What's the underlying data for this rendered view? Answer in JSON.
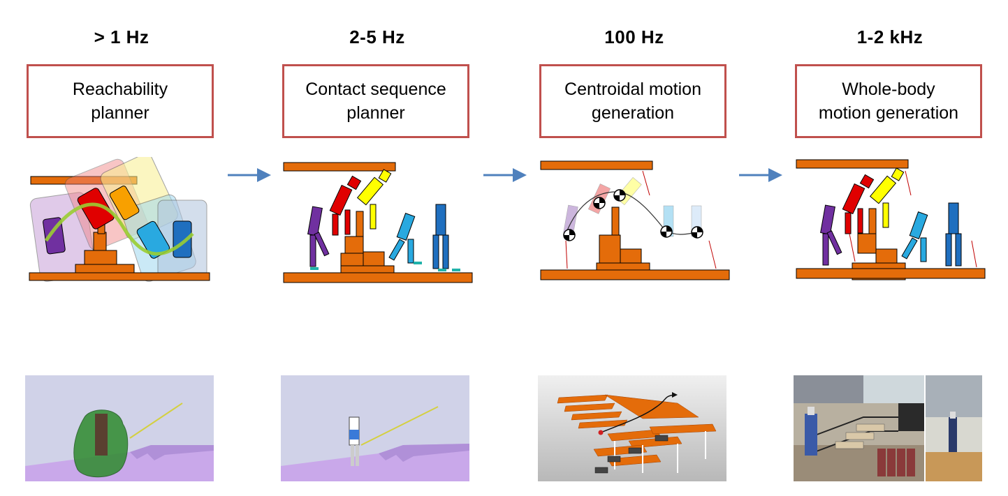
{
  "stages": [
    {
      "frequency": "> 1 Hz",
      "title": "Reachability\nplanner"
    },
    {
      "frequency": "2-5 Hz",
      "title": "Contact sequence\nplanner"
    },
    {
      "frequency": "100 Hz",
      "title": "Centroidal motion\ngeneration"
    },
    {
      "frequency": "1-2 kHz",
      "title": "Whole-body\nmotion generation"
    }
  ],
  "colors": {
    "box_border": "#c0504d",
    "arrow": "#4f81bd",
    "terrain": "#e46c0a",
    "robot_purple": "#7030a0",
    "robot_red": "#e00000",
    "robot_yellow": "#ffff00",
    "robot_lightblue": "#29a9e0",
    "robot_blue": "#1f6fbf"
  }
}
